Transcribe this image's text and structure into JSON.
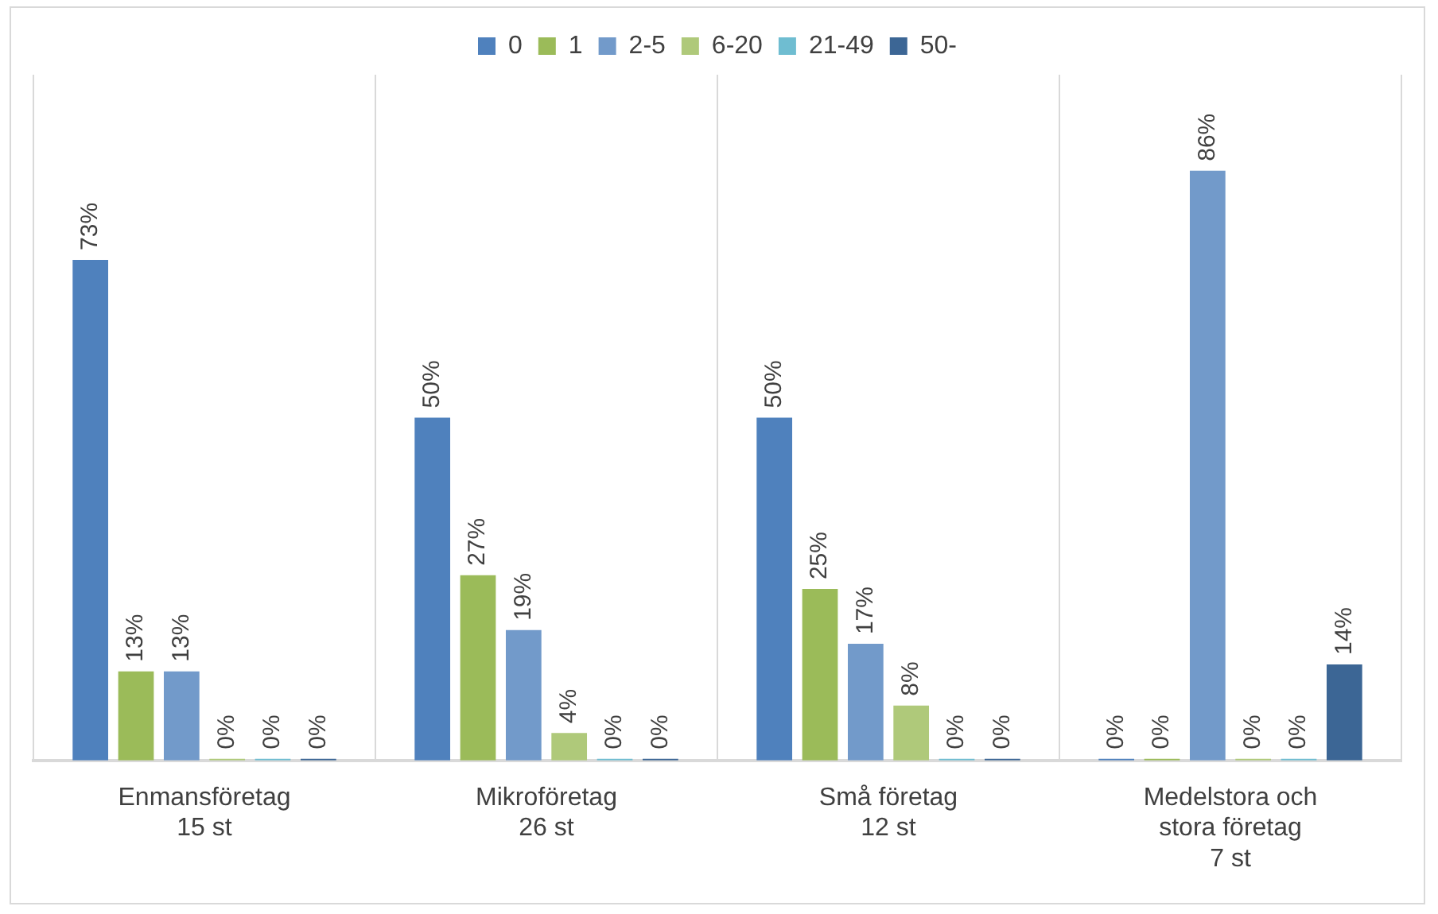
{
  "chart_data": {
    "type": "bar",
    "categories": [
      "Enmansföretag\n15 st",
      "Mikroföretag\n26 st",
      "Små företag\n12 st",
      "Medelstora och\nstora företag\n7 st"
    ],
    "series": [
      {
        "name": "0",
        "color": "#4f81bd",
        "values": [
          73,
          50,
          50,
          0
        ],
        "value_labels": [
          "73%",
          "50%",
          "50%",
          "0%"
        ]
      },
      {
        "name": "1",
        "color": "#9bbb59",
        "values": [
          13,
          27,
          25,
          0
        ],
        "value_labels": [
          "13%",
          "27%",
          "25%",
          "0%"
        ]
      },
      {
        "name": "2-5",
        "color": "#729aca",
        "values": [
          13,
          19,
          17,
          86
        ],
        "value_labels": [
          "13%",
          "19%",
          "17%",
          "86%"
        ]
      },
      {
        "name": "6-20",
        "color": "#afc97a",
        "values": [
          0,
          4,
          8,
          0
        ],
        "value_labels": [
          "0%",
          "4%",
          "8%",
          "0%"
        ]
      },
      {
        "name": "21-49",
        "color": "#6fbdd1",
        "values": [
          0,
          0,
          0,
          0
        ],
        "value_labels": [
          "0%",
          "0%",
          "0%",
          "0%"
        ]
      },
      {
        "name": "50-",
        "color": "#3c6695",
        "values": [
          0,
          0,
          0,
          14
        ],
        "value_labels": [
          "0%",
          "0%",
          "0%",
          "14%"
        ]
      }
    ],
    "grid": "x",
    "legend": "top"
  }
}
